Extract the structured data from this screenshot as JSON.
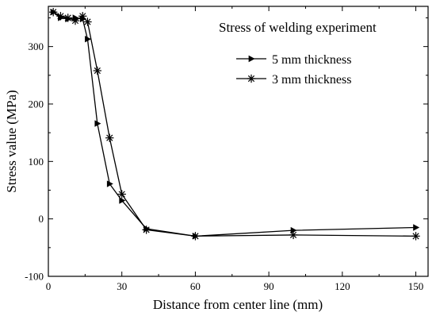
{
  "chart_data": {
    "type": "line",
    "title": "Stress of welding experiment",
    "xlabel": "Distance from center line (mm)",
    "ylabel": "Stress value (MPa)",
    "xlim": [
      0,
      155
    ],
    "ylim": [
      -100,
      370
    ],
    "xticks": [
      0,
      30,
      60,
      90,
      120,
      150
    ],
    "yticks": [
      -100,
      0,
      100,
      200,
      300
    ],
    "grid": false,
    "legend_position": "top-right",
    "series": [
      {
        "name": "5 mm thickness",
        "marker": "triangle-right",
        "x": [
          2,
          5,
          8,
          11,
          14,
          16,
          20,
          25,
          30,
          40,
          60,
          100,
          150
        ],
        "y": [
          360,
          350,
          348,
          350,
          348,
          313,
          166,
          61,
          32,
          -17,
          -30,
          -20,
          -15
        ]
      },
      {
        "name": "3 mm thickness",
        "marker": "asterisk",
        "x": [
          2,
          5,
          8,
          11,
          14,
          16,
          20,
          25,
          30,
          40,
          60,
          100,
          150
        ],
        "y": [
          360,
          353,
          350,
          345,
          353,
          343,
          258,
          141,
          43,
          -19,
          -30,
          -28,
          -30
        ]
      }
    ]
  }
}
